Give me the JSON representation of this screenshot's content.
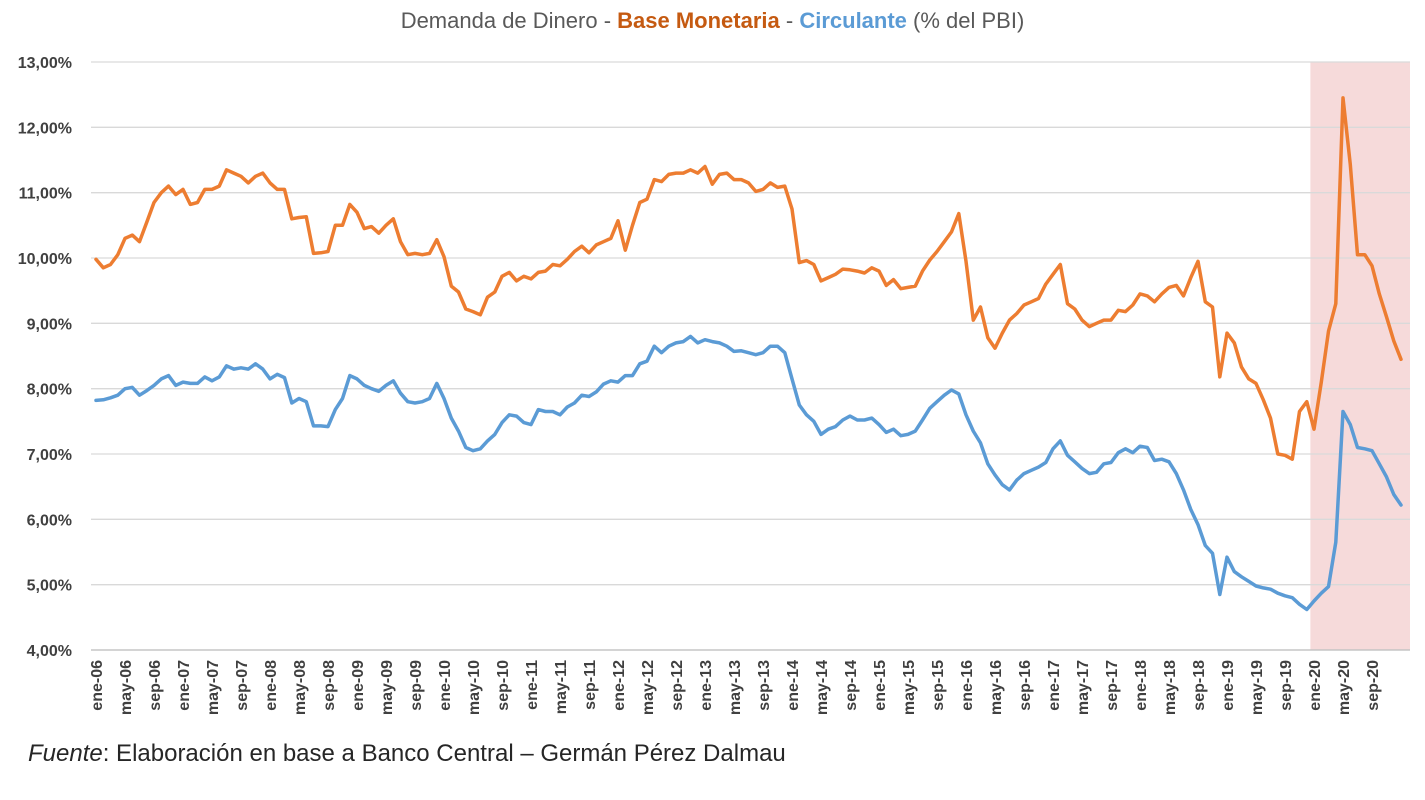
{
  "title": {
    "prefix": "Demanda de Dinero - ",
    "series1": "Base Monetaria",
    "sep": " - ",
    "series2": "Circulante",
    "suffix": " (% del PBI)"
  },
  "source": {
    "label": "Fuente",
    "text": ": Elaboración en base a Banco Central – Germán Pérez Dalmau"
  },
  "chart_data": {
    "type": "line",
    "ylim": [
      4,
      13
    ],
    "y_ticks": [
      "4,00%",
      "5,00%",
      "6,00%",
      "7,00%",
      "8,00%",
      "9,00%",
      "10,00%",
      "11,00%",
      "12,00%",
      "13,00%"
    ],
    "x_tick_labels": [
      "ene-06",
      "may-06",
      "sep-06",
      "ene-07",
      "may-07",
      "sep-07",
      "ene-08",
      "may-08",
      "sep-08",
      "ene-09",
      "may-09",
      "sep-09",
      "ene-10",
      "may-10",
      "sep-10",
      "ene-11",
      "may-11",
      "sep-11",
      "ene-12",
      "may-12",
      "sep-12",
      "ene-13",
      "may-13",
      "sep-13",
      "ene-14",
      "may-14",
      "sep-14",
      "ene-15",
      "may-15",
      "sep-15",
      "ene-16",
      "may-16",
      "sep-16",
      "ene-17",
      "may-17",
      "sep-17",
      "ene-18",
      "may-18",
      "sep-18",
      "ene-19",
      "may-19",
      "sep-19",
      "ene-20",
      "may-20",
      "sep-20"
    ],
    "grid": true,
    "highlight_range": {
      "from": "ene-20",
      "to": "dic-20",
      "color": "#f6dada"
    },
    "series": [
      {
        "name": "Base Monetaria",
        "color": "#ed7d31",
        "values": [
          9.98,
          9.85,
          9.9,
          10.05,
          10.3,
          10.35,
          10.25,
          10.55,
          10.85,
          11.0,
          11.1,
          10.97,
          11.05,
          10.82,
          10.85,
          11.05,
          11.05,
          11.1,
          11.35,
          11.3,
          11.25,
          11.15,
          11.25,
          11.3,
          11.15,
          11.05,
          11.05,
          10.6,
          10.62,
          10.63,
          10.07,
          10.08,
          10.1,
          10.5,
          10.5,
          10.82,
          10.7,
          10.45,
          10.48,
          10.38,
          10.5,
          10.6,
          10.25,
          10.05,
          10.07,
          10.05,
          10.07,
          10.28,
          10.02,
          9.57,
          9.48,
          9.22,
          9.18,
          9.13,
          9.4,
          9.48,
          9.72,
          9.78,
          9.65,
          9.72,
          9.68,
          9.78,
          9.8,
          9.9,
          9.88,
          9.98,
          10.1,
          10.18,
          10.08,
          10.2,
          10.25,
          10.3,
          10.57,
          10.12,
          10.5,
          10.85,
          10.9,
          11.2,
          11.17,
          11.28,
          11.3,
          11.3,
          11.35,
          11.3,
          11.4,
          11.13,
          11.28,
          11.3,
          11.2,
          11.2,
          11.15,
          11.02,
          11.05,
          11.15,
          11.08,
          11.1,
          10.75,
          9.93,
          9.96,
          9.9,
          9.65,
          9.7,
          9.75,
          9.83,
          9.82,
          9.8,
          9.77,
          9.85,
          9.8,
          9.58,
          9.67,
          9.53,
          9.55,
          9.57,
          9.8,
          9.97,
          10.1,
          10.25,
          10.4,
          10.68,
          9.95,
          9.05,
          9.25,
          8.78,
          8.62,
          8.85,
          9.05,
          9.15,
          9.28,
          9.33,
          9.38,
          9.6,
          9.75,
          9.9,
          9.3,
          9.22,
          9.05,
          8.95,
          9.0,
          9.05,
          9.05,
          9.2,
          9.18,
          9.28,
          9.45,
          9.42,
          9.33,
          9.45,
          9.55,
          9.58,
          9.42,
          9.7,
          9.95,
          9.33,
          9.25,
          8.18,
          8.85,
          8.7,
          8.33,
          8.15,
          8.08,
          7.83,
          7.55,
          7.0,
          6.98,
          6.92,
          7.65,
          7.8,
          7.38,
          8.1,
          8.88,
          9.3,
          12.45,
          11.43,
          10.05,
          10.05,
          9.88,
          9.45,
          9.1,
          8.73,
          8.45
        ]
      },
      {
        "name": "Circulante",
        "color": "#5b9bd5",
        "values": [
          7.82,
          7.83,
          7.86,
          7.9,
          8.0,
          8.02,
          7.9,
          7.97,
          8.05,
          8.15,
          8.2,
          8.05,
          8.1,
          8.08,
          8.08,
          8.18,
          8.12,
          8.18,
          8.35,
          8.3,
          8.32,
          8.3,
          8.38,
          8.3,
          8.15,
          8.22,
          8.17,
          7.78,
          7.85,
          7.8,
          7.43,
          7.43,
          7.42,
          7.68,
          7.85,
          8.2,
          8.15,
          8.05,
          8.0,
          7.96,
          8.05,
          8.12,
          7.93,
          7.8,
          7.78,
          7.8,
          7.85,
          8.08,
          7.85,
          7.55,
          7.35,
          7.1,
          7.05,
          7.08,
          7.2,
          7.3,
          7.48,
          7.6,
          7.58,
          7.48,
          7.45,
          7.68,
          7.65,
          7.65,
          7.6,
          7.72,
          7.78,
          7.9,
          7.88,
          7.95,
          8.07,
          8.12,
          8.1,
          8.2,
          8.2,
          8.38,
          8.42,
          8.65,
          8.55,
          8.65,
          8.7,
          8.72,
          8.8,
          8.7,
          8.75,
          8.72,
          8.7,
          8.65,
          8.57,
          8.58,
          8.55,
          8.52,
          8.55,
          8.65,
          8.65,
          8.55,
          8.15,
          7.75,
          7.6,
          7.5,
          7.3,
          7.38,
          7.42,
          7.52,
          7.58,
          7.52,
          7.52,
          7.55,
          7.45,
          7.33,
          7.38,
          7.28,
          7.3,
          7.35,
          7.52,
          7.7,
          7.8,
          7.9,
          7.98,
          7.92,
          7.6,
          7.35,
          7.17,
          6.85,
          6.68,
          6.53,
          6.45,
          6.6,
          6.7,
          6.75,
          6.8,
          6.87,
          7.08,
          7.2,
          6.98,
          6.88,
          6.78,
          6.7,
          6.72,
          6.85,
          6.87,
          7.02,
          7.08,
          7.02,
          7.12,
          7.1,
          6.9,
          6.92,
          6.88,
          6.7,
          6.45,
          6.15,
          5.92,
          5.6,
          5.48,
          4.85,
          5.42,
          5.2,
          5.12,
          5.05,
          4.98,
          4.95,
          4.93,
          4.87,
          4.83,
          4.8,
          4.7,
          4.62,
          4.75,
          4.87,
          4.97,
          5.65,
          7.65,
          7.45,
          7.1,
          7.08,
          7.05,
          6.85,
          6.65,
          6.38,
          6.22
        ]
      }
    ]
  }
}
